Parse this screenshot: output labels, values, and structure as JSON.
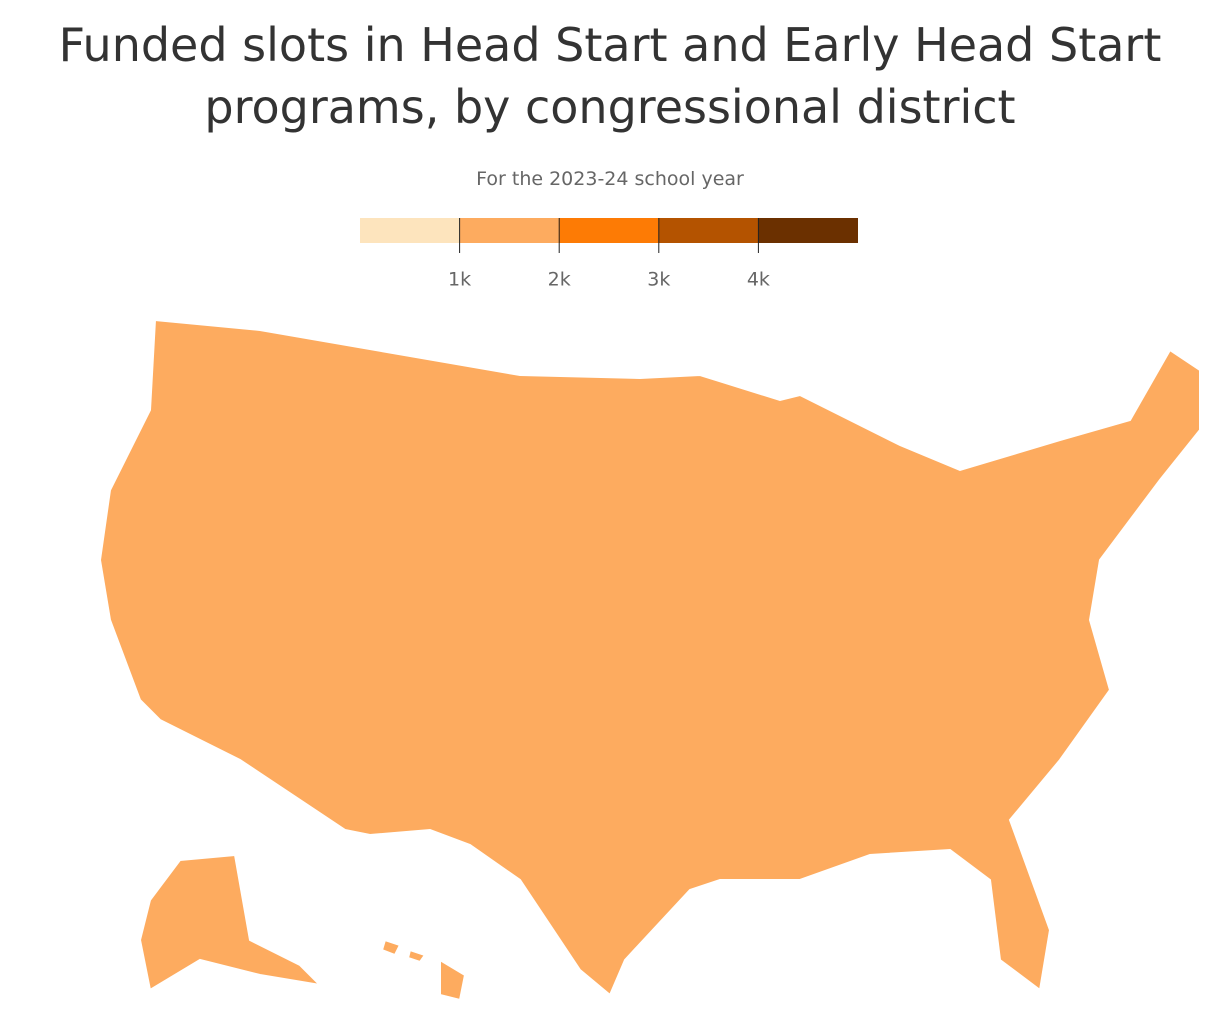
{
  "chart_data": {
    "type": "choropleth",
    "title": "Funded slots in Head Start and Early Head Start programs, by congressional district",
    "subtitle": "For the 2023-24 school year",
    "legend": {
      "colors": [
        "#fde4bd",
        "#fdab5f",
        "#fd7b05",
        "#b45300",
        "#6b3000"
      ],
      "bins": [
        0,
        1000,
        2000,
        3000,
        4000,
        5000
      ],
      "ticks": [
        {
          "value": 1000,
          "label": "1k"
        },
        {
          "value": 2000,
          "label": "2k"
        },
        {
          "value": 3000,
          "label": "3k"
        },
        {
          "value": 4000,
          "label": "4k"
        }
      ]
    }
  }
}
